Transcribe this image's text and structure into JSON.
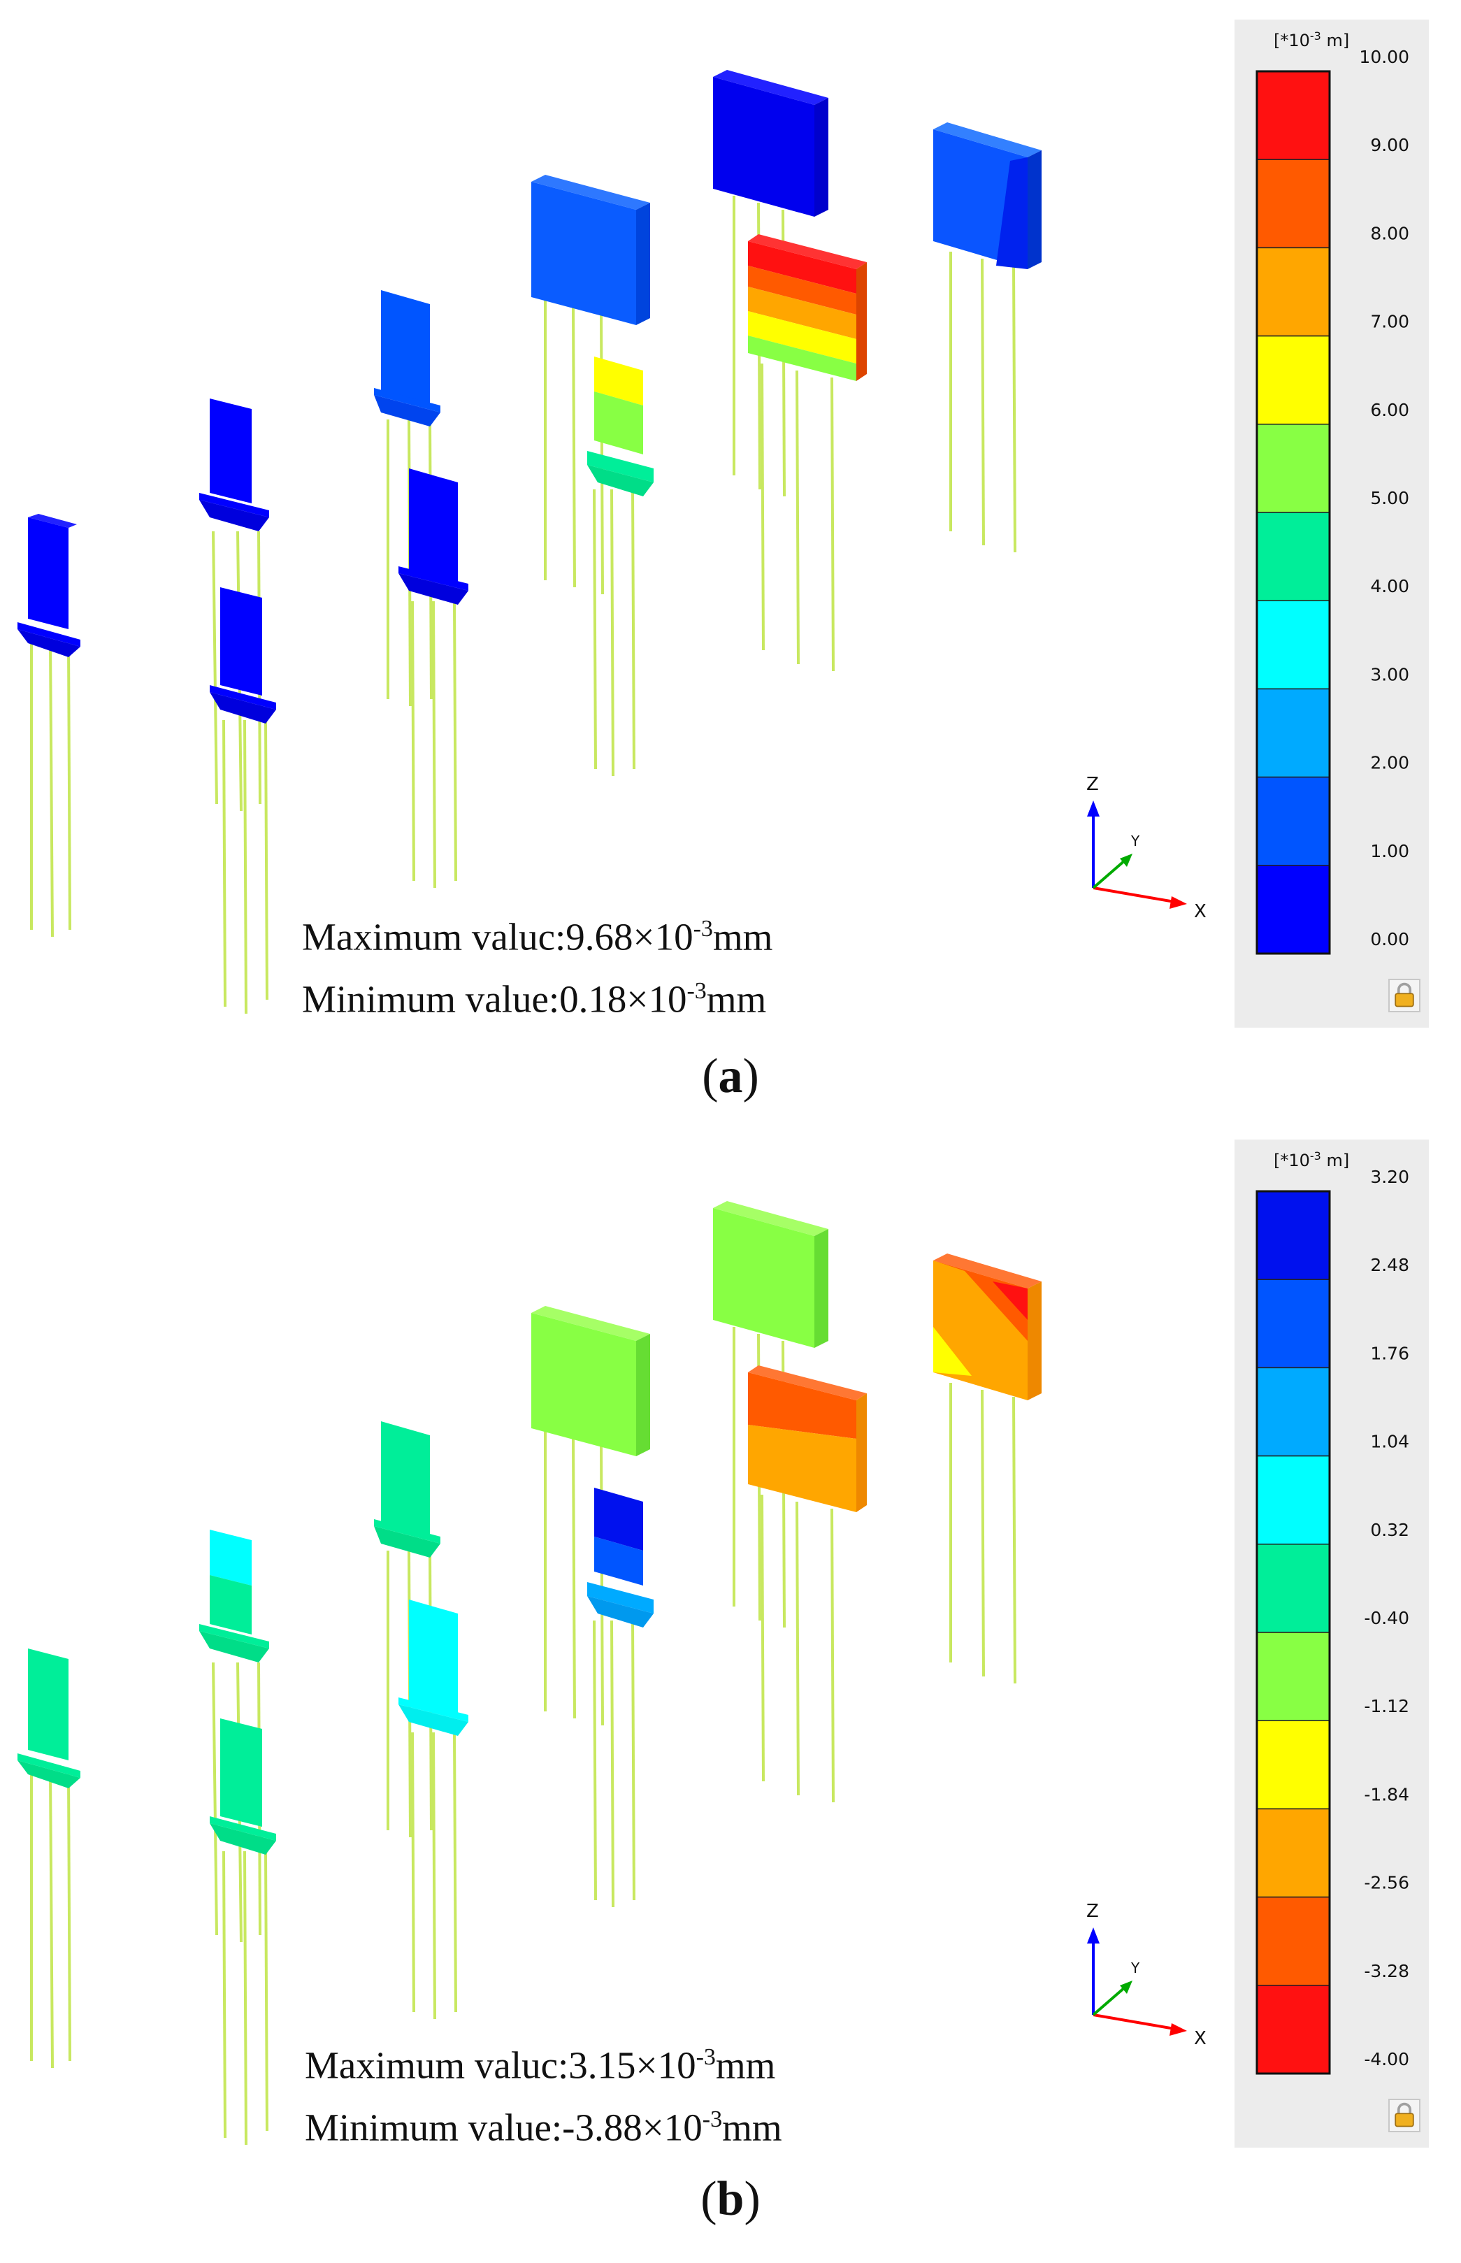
{
  "panels": [
    {
      "id": "a",
      "label": "a",
      "unit_label": "[*10",
      "unit_exp": "-3",
      "unit_tail": " m]",
      "legend_values": [
        "10.00",
        "9.00",
        "8.00",
        "7.00",
        "6.00",
        "5.00",
        "4.00",
        "3.00",
        "2.00",
        "1.00",
        "0.00"
      ],
      "legend_colors": [
        "#ff1111",
        "#ff5a00",
        "#ffa600",
        "#ffff00",
        "#88ff44",
        "#00ee99",
        "#00ffff",
        "#00aaff",
        "#0055ff",
        "#0000ff"
      ],
      "max_prefix": "Maximum valuc:",
      "max_value": "9.68×10",
      "max_exp": "-3",
      "max_unit": "mm",
      "min_prefix": "Minimum value:",
      "min_value": "0.18×10",
      "min_exp": "-3",
      "min_unit": "mm",
      "element_colors": {
        "small_piers": "#0000ff",
        "mid_pier_1": "#0055ff",
        "large_cap_1": "#0a5cff",
        "large_cap_2": "#0000ee",
        "large_cap_3": "#0a55ff"
      }
    },
    {
      "id": "b",
      "label": "b",
      "unit_label": "[*10",
      "unit_exp": "-3",
      "unit_tail": " m]",
      "legend_values": [
        "3.20",
        "2.48",
        "1.76",
        "1.04",
        "0.32",
        "-0.40",
        "-1.12",
        "-1.84",
        "-2.56",
        "-3.28",
        "-4.00"
      ],
      "legend_colors": [
        "#0011ee",
        "#0055ff",
        "#00aaff",
        "#00ffff",
        "#00ee99",
        "#88ff44",
        "#ffff00",
        "#ffa600",
        "#ff5a00",
        "#ff1111"
      ],
      "max_prefix": "Maximum valuc:",
      "max_value": "3.15×10",
      "max_exp": "-3",
      "max_unit": "mm",
      "min_prefix": "Minimum value:",
      "min_value": "-3.88×10",
      "min_exp": "-3",
      "min_unit": "mm",
      "element_colors": {
        "small_piers": "#00ee99",
        "mid_pier_1": "#00ee99",
        "large_cap_1": "#88ff44",
        "large_cap_2": "#88ff44",
        "large_cap_3": "#ffa600"
      }
    }
  ],
  "axes": {
    "z": "Z",
    "y": "Y",
    "x": "X"
  }
}
